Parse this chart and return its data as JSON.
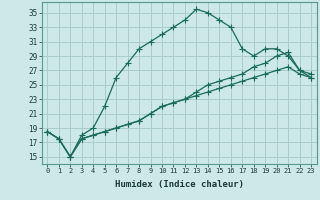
{
  "xlabel": "Humidex (Indice chaleur)",
  "bg_color": "#cce8e8",
  "grid_color": "#aacccc",
  "line_color": "#1a6b5a",
  "xlim": [
    -0.5,
    23.5
  ],
  "ylim": [
    14.0,
    36.5
  ],
  "xticks": [
    0,
    1,
    2,
    3,
    4,
    5,
    6,
    7,
    8,
    9,
    10,
    11,
    12,
    13,
    14,
    15,
    16,
    17,
    18,
    19,
    20,
    21,
    22,
    23
  ],
  "yticks": [
    15,
    17,
    19,
    21,
    23,
    25,
    27,
    29,
    31,
    33,
    35
  ],
  "line1_x": [
    0,
    1,
    2,
    3,
    4,
    5,
    6,
    7,
    8,
    9,
    10,
    11,
    12,
    13,
    14,
    15,
    16,
    17,
    18,
    19,
    20,
    21,
    22,
    23
  ],
  "line1_y": [
    18.5,
    17.5,
    15,
    18,
    19,
    22,
    26,
    28,
    30,
    31,
    32,
    33,
    34,
    35.5,
    35,
    34,
    33,
    30,
    29,
    30,
    30,
    29,
    27,
    26
  ],
  "line2_x": [
    0,
    1,
    2,
    3,
    4,
    5,
    6,
    7,
    8,
    9,
    10,
    11,
    12,
    13,
    14,
    15,
    16,
    17,
    18,
    19,
    20,
    21,
    22,
    23
  ],
  "line2_y": [
    18.5,
    17.5,
    15,
    17.5,
    18,
    18.5,
    19,
    19.5,
    20,
    21,
    22,
    22.5,
    23,
    23.5,
    24,
    24.5,
    25,
    25.5,
    26,
    26.5,
    27,
    27.5,
    26.5,
    26
  ],
  "line3_x": [
    0,
    1,
    2,
    3,
    4,
    5,
    6,
    7,
    8,
    9,
    10,
    11,
    12,
    13,
    14,
    15,
    16,
    17,
    18,
    19,
    20,
    21,
    22,
    23
  ],
  "line3_y": [
    18.5,
    17.5,
    15,
    17.5,
    18,
    18.5,
    19,
    19.5,
    20,
    21,
    22,
    22.5,
    23,
    24,
    25,
    25.5,
    26,
    26.5,
    27.5,
    28,
    29,
    29.5,
    27,
    26.5
  ]
}
